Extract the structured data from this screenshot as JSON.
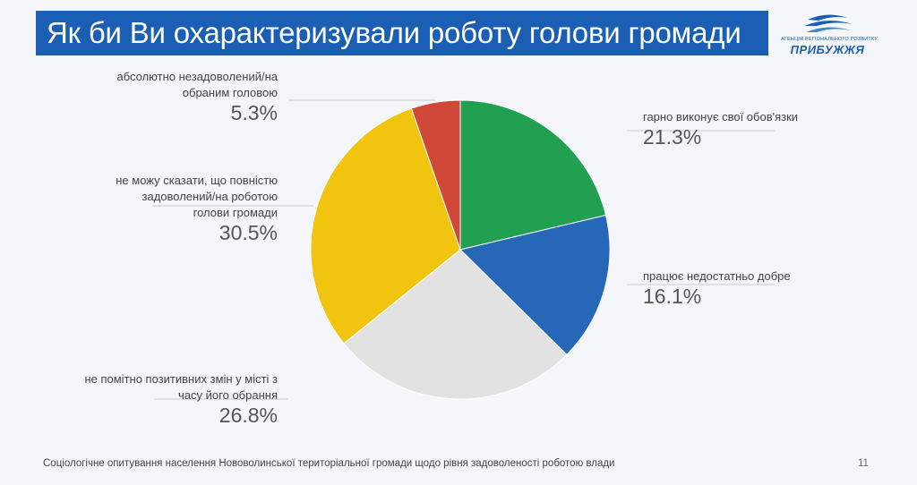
{
  "title": "Як би Ви охарактеризували роботу голови громади",
  "logo": {
    "small_text": "АГЕНЦІЯ РЕГІОНАЛЬНОГО РОЗВИТКУ",
    "big_text": "ПРИБУЖЖЯ",
    "color": "#1a5fb4"
  },
  "footer": {
    "text": "Соціологічне опитування населення Нововолинської територіальної громади щодо рівня задоволеності роботою влади",
    "page_number": "11"
  },
  "chart_data": {
    "type": "pie",
    "start": "12 o'clock",
    "direction": "clockwise",
    "slices": [
      {
        "label_lines": [
          "гарно виконує свої обов'язки"
        ],
        "value": 21.3,
        "value_label": "21.3%",
        "color": "#22a052",
        "label_side": "right"
      },
      {
        "label_lines": [
          "працює недостатньо добре"
        ],
        "value": 16.1,
        "value_label": "16.1%",
        "color": "#2767b8",
        "label_side": "right"
      },
      {
        "label_lines": [
          "не помітно позитивних змін у місті з",
          "часу його обрання"
        ],
        "value": 26.8,
        "value_label": "26.8%",
        "color": "#e2e2e2",
        "label_side": "left"
      },
      {
        "label_lines": [
          "не можу сказати, що повністю",
          "задоволений/на роботою",
          "голови громади"
        ],
        "value": 30.5,
        "value_label": "30.5%",
        "color": "#f1c50f",
        "label_side": "left"
      },
      {
        "label_lines": [
          "абсолютно незадоволений/на",
          "обраним головою"
        ],
        "value": 5.3,
        "value_label": "5.3%",
        "color": "#d04838",
        "label_side": "left"
      }
    ]
  }
}
